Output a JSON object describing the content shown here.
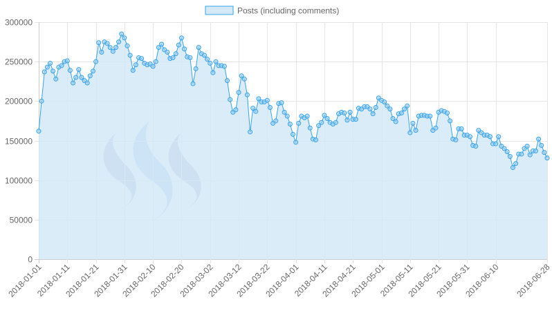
{
  "colors": {
    "line": "#36a2eb",
    "fill": "#d5e9f8",
    "point_fill": "#9fd0f3",
    "grid": "#e5e5e5",
    "axis": "#cccccc",
    "text": "#666666",
    "watermark_dark": "#8a9cc0",
    "watermark_light": "#8fbcee"
  },
  "watermark": {
    "icon": "steem-logo-icon"
  },
  "chart_data": {
    "type": "area",
    "legend": {
      "position": "top",
      "labels": [
        "Posts (including comments)"
      ]
    },
    "grid": true,
    "ylim": [
      0,
      300000
    ],
    "y_ticks": [
      "300000",
      "250000",
      "200000",
      "150000",
      "100000",
      "50000",
      "0"
    ],
    "y_tick_values": [
      300000,
      250000,
      200000,
      150000,
      100000,
      50000,
      0
    ],
    "x_ticks": [
      "2018-01-01",
      "2018-01-11",
      "2018-01-21",
      "2018-01-31",
      "2018-02-10",
      "2018-02-20",
      "2018-03-02",
      "2018-03-12",
      "2018-03-22",
      "2018-04-01",
      "2018-04-11",
      "2018-04-21",
      "2018-05-01",
      "2018-05-11",
      "2018-05-21",
      "2018-05-31",
      "2018-06-10",
      "2018-06-28"
    ],
    "x_tick_day_index": [
      0,
      10,
      20,
      30,
      40,
      50,
      60,
      70,
      80,
      90,
      100,
      110,
      120,
      130,
      140,
      150,
      160,
      178
    ],
    "x_start": "2018-01-01",
    "x_end": "2018-06-28",
    "series": [
      {
        "name": "Posts (including comments)",
        "values": [
          162000,
          200000,
          237000,
          243000,
          248000,
          238000,
          228000,
          243000,
          245000,
          250000,
          251000,
          239000,
          223000,
          230000,
          240000,
          230000,
          226000,
          223000,
          232000,
          238000,
          250000,
          274000,
          262000,
          275000,
          273000,
          268000,
          263000,
          268000,
          275000,
          285000,
          280000,
          270000,
          258000,
          239000,
          246000,
          255000,
          254000,
          248000,
          246000,
          247000,
          244000,
          250000,
          268000,
          272000,
          265000,
          262000,
          254000,
          255000,
          260000,
          271000,
          280000,
          266000,
          256000,
          255000,
          222000,
          241000,
          268000,
          260000,
          258000,
          253000,
          248000,
          236000,
          250000,
          245000,
          245000,
          244000,
          226000,
          202000,
          186000,
          189000,
          211000,
          232000,
          228000,
          208000,
          161000,
          191000,
          187000,
          203000,
          199000,
          199000,
          201000,
          192000,
          172000,
          175000,
          197000,
          198000,
          186000,
          181000,
          171000,
          158000,
          148000,
          172000,
          181000,
          179000,
          181000,
          166000,
          152000,
          151000,
          169000,
          173000,
          182000,
          178000,
          173000,
          171000,
          173000,
          184000,
          186000,
          185000,
          176000,
          186000,
          177000,
          177000,
          191000,
          190000,
          193000,
          193000,
          190000,
          184000,
          192000,
          204000,
          201000,
          199000,
          194000,
          190000,
          178000,
          174000,
          184000,
          185000,
          190000,
          194000,
          160000,
          172000,
          163000,
          181000,
          182000,
          182000,
          181000,
          181000,
          163000,
          166000,
          186000,
          188000,
          187000,
          185000,
          175000,
          152000,
          151000,
          165000,
          165000,
          157000,
          157000,
          155000,
          144000,
          143000,
          163000,
          160000,
          157000,
          157000,
          155000,
          146000,
          146000,
          155000,
          143000,
          140000,
          136000,
          130000,
          116000,
          121000,
          133000,
          133000,
          140000,
          143000,
          132000,
          137000,
          137000,
          152000,
          144000,
          135000,
          128000
        ]
      }
    ]
  }
}
